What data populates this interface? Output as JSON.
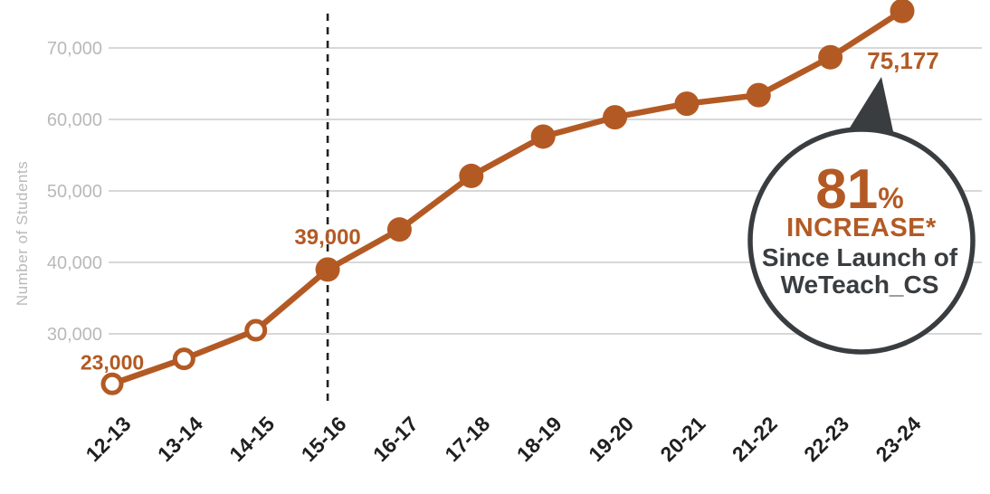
{
  "chart_data": {
    "type": "line",
    "title": "",
    "xlabel": "",
    "ylabel": "Number of Students",
    "categories": [
      "12-13",
      "13-14",
      "14-15",
      "15-16",
      "16-17",
      "17-18",
      "18-19",
      "19-20",
      "20-21",
      "21-22",
      "22-23",
      "23-24"
    ],
    "series": [
      {
        "name": "Number of Students",
        "values": [
          23000,
          26500,
          30500,
          39000,
          44600,
          52100,
          57600,
          60300,
          62200,
          63400,
          68700,
          75177
        ]
      }
    ],
    "yticks": [
      {
        "value": 30000,
        "label": "30,000"
      },
      {
        "value": 40000,
        "label": "40,000"
      },
      {
        "value": 50000,
        "label": "50,000"
      },
      {
        "value": 60000,
        "label": "60,000"
      },
      {
        "value": 70000,
        "label": "70,000"
      }
    ],
    "ylim": [
      20000,
      78000
    ],
    "grid": true,
    "legend_position": "none",
    "open_marker_categories": [
      "12-13",
      "13-14",
      "14-15"
    ],
    "reference_line": {
      "category": "15-16",
      "style": "dashed"
    },
    "annotations": [
      {
        "category": "12-13",
        "text": "23,000",
        "placement": "above"
      },
      {
        "category": "15-16",
        "text": "39,000",
        "placement": "above-high"
      },
      {
        "category": "23-24",
        "text": "75,177",
        "placement": "below"
      }
    ]
  },
  "callout": {
    "percent_value": "81",
    "percent_sign": "%",
    "line1": "INCREASE*",
    "line2": "Since Launch of",
    "line3": "WeTeach_CS"
  },
  "colors": {
    "accent": "#b35a24",
    "charcoal": "#3a3d40",
    "grid": "#d8d8d8",
    "axis_gray": "#b9b9b9",
    "x_label": "#1f1f1f",
    "dashed": "#222222",
    "background": "#ffffff"
  }
}
